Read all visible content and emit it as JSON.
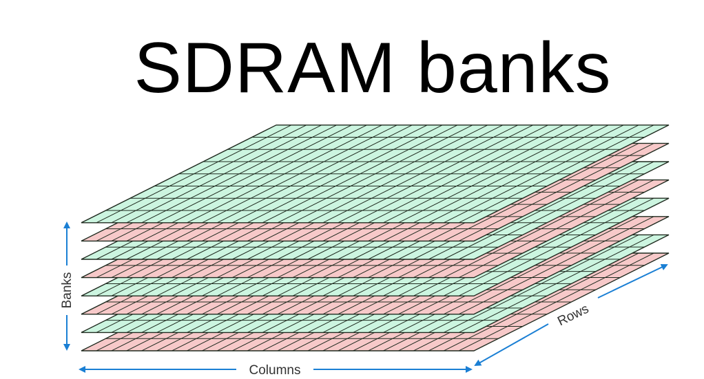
{
  "title": "SDRAM banks",
  "diagram": {
    "layers": [
      "red",
      "green",
      "red",
      "green",
      "red",
      "green",
      "red",
      "green"
    ],
    "grid": {
      "columns": 26,
      "rows": 8
    },
    "colors": {
      "green_fill": "#ccf5e0",
      "red_fill": "#f7c9c9",
      "grid_line": "#1f2a1f",
      "arrow": "#1a7fd4"
    },
    "labels": {
      "banks": "Banks",
      "columns": "Columns",
      "rows": "Rows"
    }
  }
}
